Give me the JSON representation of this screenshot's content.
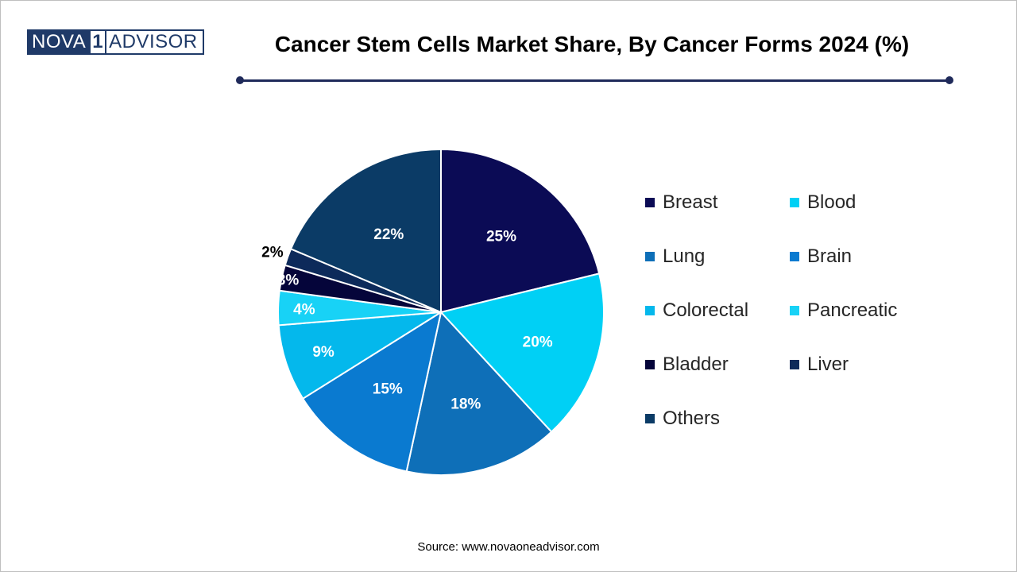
{
  "logo": {
    "left": "NOVA",
    "num": "1",
    "right": "ADVISOR"
  },
  "title": "Cancer Stem Cells Market Share, By Cancer Forms 2024 (%)",
  "source": "Source: www.novaoneadvisor.com",
  "colors": {
    "rule": "#1f2a5a",
    "logo": "#1f3a68",
    "slice_border": "#ffffff"
  },
  "chart_data": {
    "type": "pie",
    "title": "Cancer Stem Cells Market Share, By Cancer Forms 2024 (%)",
    "start_angle_deg": 0,
    "direction": "clockwise",
    "slices": [
      {
        "label": "Breast",
        "value": 25,
        "value_label": "25%",
        "color": "#0b0b55",
        "label_color": "#ffffff"
      },
      {
        "label": "Blood",
        "value": 20,
        "value_label": "20%",
        "color": "#00d0f5",
        "label_color": "#ffffff"
      },
      {
        "label": "Lung",
        "value": 18,
        "value_label": "18%",
        "color": "#0e6fb8",
        "label_color": "#ffffff"
      },
      {
        "label": "Brain",
        "value": 15,
        "value_label": "15%",
        "color": "#0a7ad0",
        "label_color": "#ffffff"
      },
      {
        "label": "Colorectal",
        "value": 9,
        "value_label": "9%",
        "color": "#04b8ec",
        "label_color": "#ffffff"
      },
      {
        "label": "Pancreatic",
        "value": 4,
        "value_label": "4%",
        "color": "#18d2f6",
        "label_color": "#ffffff"
      },
      {
        "label": "Bladder",
        "value": 3,
        "value_label": "3%",
        "color": "#05053a",
        "label_color": "#ffffff"
      },
      {
        "label": "Liver",
        "value": 2,
        "value_label": "2%",
        "color": "#0d2a5a",
        "label_color": "#000000"
      },
      {
        "label": "Others",
        "value": 22,
        "value_label": "22%",
        "color": "#0b3b66",
        "label_color": "#ffffff"
      }
    ],
    "legend": {
      "position": "right",
      "columns": 2,
      "entries": [
        {
          "label": "Breast",
          "color": "#0b0b55"
        },
        {
          "label": "Blood",
          "color": "#00d0f5"
        },
        {
          "label": "Lung",
          "color": "#0e6fb8"
        },
        {
          "label": "Brain",
          "color": "#0a7ad0"
        },
        {
          "label": "Colorectal",
          "color": "#04b8ec"
        },
        {
          "label": "Pancreatic",
          "color": "#18d2f6"
        },
        {
          "label": "Bladder",
          "color": "#05053a"
        },
        {
          "label": "Liver",
          "color": "#0d2a5a"
        },
        {
          "label": "Others",
          "color": "#0b3b66"
        }
      ]
    }
  }
}
